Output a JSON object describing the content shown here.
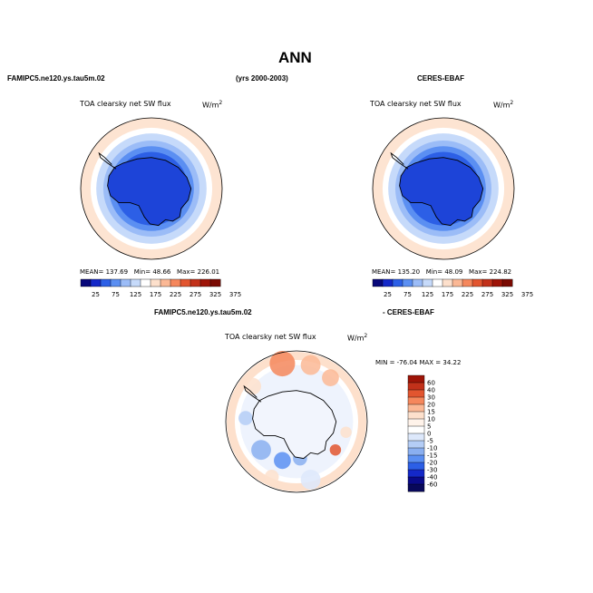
{
  "figure": {
    "title": "ANN",
    "top_left_header": "FAMIPC5.ne120.ys.tau5m.02",
    "top_center_header": "(yrs 2000-2003)",
    "top_right_header": "CERES-EBAF",
    "bottom_header_left": "FAMIPC5.ne120.ys.tau5m.02",
    "bottom_header_right": "- CERES-EBAF"
  },
  "chart_data": [
    {
      "type": "heatmap",
      "id": "model",
      "variable": "TOA clearsky net SW flux",
      "units": "W/m",
      "units_sup": "2",
      "stats": {
        "mean_label": "MEAN=",
        "mean": "137.69",
        "min_label": "Min=",
        "min": "48.66",
        "max_label": "Max=",
        "max": "226.01"
      },
      "colorbar_levels": [
        "25",
        "75",
        "125",
        "175",
        "225",
        "275",
        "325",
        "375"
      ],
      "colorbar_colors": [
        "#08087a",
        "#1428c8",
        "#2c5fe6",
        "#5b8ff2",
        "#9bbcf7",
        "#c6dafa",
        "#ffffff",
        "#fde0cc",
        "#fbb895",
        "#f5875c",
        "#e2552f",
        "#c2311a",
        "#9e1407",
        "#7a0a02"
      ],
      "region": "Antarctica / Southern Ocean polar stereographic"
    },
    {
      "type": "heatmap",
      "id": "obs",
      "variable": "TOA clearsky net SW flux",
      "units": "W/m",
      "units_sup": "2",
      "stats": {
        "mean_label": "MEAN=",
        "mean": "135.20",
        "min_label": "Min=",
        "min": "48.09",
        "max_label": "Max=",
        "max": "224.82"
      },
      "colorbar_levels": [
        "25",
        "75",
        "125",
        "175",
        "225",
        "275",
        "325",
        "375"
      ],
      "colorbar_colors": [
        "#08087a",
        "#1428c8",
        "#2c5fe6",
        "#5b8ff2",
        "#9bbcf7",
        "#c6dafa",
        "#ffffff",
        "#fde0cc",
        "#fbb895",
        "#f5875c",
        "#e2552f",
        "#c2311a",
        "#9e1407",
        "#7a0a02"
      ],
      "region": "Antarctica / Southern Ocean polar stereographic"
    },
    {
      "type": "heatmap",
      "id": "diff",
      "variable": "TOA clearsky net SW flux",
      "units": "W/m",
      "units_sup": "2",
      "range_text": "MIN = -76.04  MAX =  34.22",
      "colorbar_levels": [
        "60",
        "40",
        "30",
        "20",
        "15",
        "10",
        "5",
        "0",
        "-5",
        "-10",
        "-15",
        "-20",
        "-30",
        "-40",
        "-60"
      ],
      "colorbar_colors": [
        "#9e1407",
        "#c2311a",
        "#e2552f",
        "#f5875c",
        "#fbb895",
        "#fde0cc",
        "#fff3ea",
        "#ffffff",
        "#dde8fb",
        "#b4cdf6",
        "#8aaff0",
        "#5b8ff2",
        "#2c5fe6",
        "#1428c8",
        "#0a0a8a",
        "#08085a"
      ]
    }
  ]
}
